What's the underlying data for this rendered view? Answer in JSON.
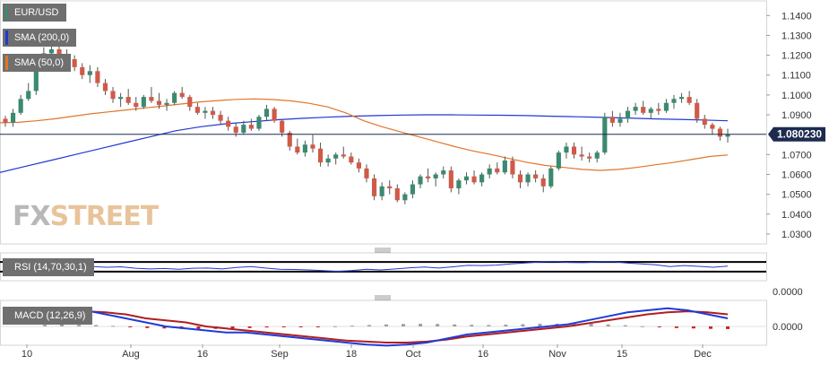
{
  "chart_data": [
    {
      "type": "candlestick",
      "title": "EUR/USD",
      "price_tag": "1.080230",
      "current_price": 1.0802,
      "ylim": [
        1.025,
        1.146
      ],
      "yticks": [
        "1.1400",
        "1.1300",
        "1.1200",
        "1.1100",
        "1.1000",
        "1.0900",
        "1.0700",
        "1.0600",
        "1.0500",
        "1.0400",
        "1.0300"
      ],
      "xticks": [
        "10",
        "Aug",
        "16",
        "Sep",
        "18",
        "Oct",
        "16",
        "Nov",
        "15",
        "Dec"
      ],
      "colors": {
        "up": "#3a8a6f",
        "down": "#d05a48",
        "sma200": "#2238d0",
        "sma50": "#e0752a",
        "price_line": "#1d2b4f"
      },
      "candles": [
        [
          1.088,
          1.0895,
          1.084,
          1.086
        ],
        [
          1.086,
          1.093,
          1.084,
          1.091
        ],
        [
          1.091,
          1.1,
          1.09,
          1.098
        ],
        [
          1.098,
          1.106,
          1.097,
          1.102
        ],
        [
          1.102,
          1.12,
          1.1,
          1.118
        ],
        [
          1.118,
          1.124,
          1.115,
          1.121
        ],
        [
          1.121,
          1.126,
          1.119,
          1.123
        ],
        [
          1.123,
          1.125,
          1.118,
          1.12
        ],
        [
          1.12,
          1.123,
          1.116,
          1.118
        ],
        [
          1.118,
          1.12,
          1.112,
          1.114
        ],
        [
          1.114,
          1.116,
          1.108,
          1.11
        ],
        [
          1.11,
          1.115,
          1.106,
          1.112
        ],
        [
          1.112,
          1.114,
          1.104,
          1.106
        ],
        [
          1.106,
          1.108,
          1.1,
          1.102
        ],
        [
          1.102,
          1.104,
          1.096,
          1.098
        ],
        [
          1.098,
          1.101,
          1.094,
          1.099
        ],
        [
          1.099,
          1.103,
          1.095,
          1.096
        ],
        [
          1.096,
          1.099,
          1.092,
          1.094
        ],
        [
          1.094,
          1.1,
          1.093,
          1.099
        ],
        [
          1.099,
          1.104,
          1.096,
          1.097
        ],
        [
          1.097,
          1.101,
          1.093,
          1.095
        ],
        [
          1.095,
          1.098,
          1.092,
          1.096
        ],
        [
          1.096,
          1.102,
          1.095,
          1.101
        ],
        [
          1.101,
          1.104,
          1.098,
          1.099
        ],
        [
          1.099,
          1.1,
          1.092,
          1.094
        ],
        [
          1.094,
          1.096,
          1.09,
          1.091
        ],
        [
          1.091,
          1.094,
          1.088,
          1.092
        ],
        [
          1.092,
          1.094,
          1.088,
          1.09
        ],
        [
          1.09,
          1.092,
          1.085,
          1.087
        ],
        [
          1.087,
          1.089,
          1.082,
          1.084
        ],
        [
          1.084,
          1.086,
          1.079,
          1.081
        ],
        [
          1.081,
          1.087,
          1.08,
          1.085
        ],
        [
          1.085,
          1.088,
          1.082,
          1.083
        ],
        [
          1.083,
          1.09,
          1.082,
          1.089
        ],
        [
          1.089,
          1.095,
          1.087,
          1.093
        ],
        [
          1.093,
          1.094,
          1.086,
          1.087
        ],
        [
          1.087,
          1.088,
          1.079,
          1.081
        ],
        [
          1.081,
          1.082,
          1.072,
          1.074
        ],
        [
          1.074,
          1.078,
          1.07,
          1.071
        ],
        [
          1.071,
          1.077,
          1.069,
          1.075
        ],
        [
          1.075,
          1.08,
          1.071,
          1.073
        ],
        [
          1.073,
          1.076,
          1.064,
          1.066
        ],
        [
          1.066,
          1.07,
          1.064,
          1.068
        ],
        [
          1.068,
          1.071,
          1.065,
          1.07
        ],
        [
          1.07,
          1.074,
          1.068,
          1.069
        ],
        [
          1.069,
          1.071,
          1.065,
          1.066
        ],
        [
          1.066,
          1.068,
          1.061,
          1.063
        ],
        [
          1.063,
          1.065,
          1.056,
          1.058
        ],
        [
          1.058,
          1.06,
          1.047,
          1.049
        ],
        [
          1.049,
          1.056,
          1.047,
          1.054
        ],
        [
          1.054,
          1.057,
          1.05,
          1.053
        ],
        [
          1.053,
          1.055,
          1.046,
          1.047
        ],
        [
          1.047,
          1.051,
          1.045,
          1.05
        ],
        [
          1.05,
          1.057,
          1.048,
          1.055
        ],
        [
          1.055,
          1.06,
          1.053,
          1.059
        ],
        [
          1.059,
          1.063,
          1.056,
          1.058
        ],
        [
          1.058,
          1.061,
          1.054,
          1.06
        ],
        [
          1.06,
          1.064,
          1.058,
          1.062
        ],
        [
          1.062,
          1.064,
          1.051,
          1.053
        ],
        [
          1.053,
          1.058,
          1.05,
          1.057
        ],
        [
          1.057,
          1.061,
          1.055,
          1.059
        ],
        [
          1.059,
          1.062,
          1.055,
          1.056
        ],
        [
          1.056,
          1.061,
          1.054,
          1.06
        ],
        [
          1.06,
          1.065,
          1.058,
          1.063
        ],
        [
          1.063,
          1.066,
          1.06,
          1.061
        ],
        [
          1.061,
          1.069,
          1.06,
          1.067
        ],
        [
          1.067,
          1.069,
          1.058,
          1.06
        ],
        [
          1.06,
          1.062,
          1.053,
          1.056
        ],
        [
          1.056,
          1.061,
          1.054,
          1.06
        ],
        [
          1.06,
          1.062,
          1.056,
          1.058
        ],
        [
          1.058,
          1.06,
          1.051,
          1.054
        ],
        [
          1.054,
          1.064,
          1.053,
          1.063
        ],
        [
          1.063,
          1.072,
          1.062,
          1.071
        ],
        [
          1.071,
          1.076,
          1.068,
          1.074
        ],
        [
          1.074,
          1.076,
          1.068,
          1.07
        ],
        [
          1.07,
          1.074,
          1.067,
          1.069
        ],
        [
          1.069,
          1.071,
          1.066,
          1.068
        ],
        [
          1.068,
          1.072,
          1.066,
          1.071
        ],
        [
          1.071,
          1.091,
          1.07,
          1.089
        ],
        [
          1.089,
          1.092,
          1.084,
          1.086
        ],
        [
          1.086,
          1.091,
          1.084,
          1.088
        ],
        [
          1.088,
          1.094,
          1.086,
          1.092
        ],
        [
          1.092,
          1.096,
          1.09,
          1.094
        ],
        [
          1.094,
          1.097,
          1.09,
          1.091
        ],
        [
          1.091,
          1.094,
          1.088,
          1.093
        ],
        [
          1.093,
          1.096,
          1.09,
          1.092
        ],
        [
          1.092,
          1.098,
          1.091,
          1.096
        ],
        [
          1.096,
          1.1,
          1.093,
          1.098
        ],
        [
          1.098,
          1.101,
          1.096,
          1.099
        ],
        [
          1.099,
          1.102,
          1.095,
          1.096
        ],
        [
          1.096,
          1.098,
          1.086,
          1.088
        ],
        [
          1.088,
          1.09,
          1.083,
          1.085
        ],
        [
          1.085,
          1.086,
          1.08,
          1.083
        ],
        [
          1.083,
          1.084,
          1.077,
          1.079
        ],
        [
          1.079,
          1.083,
          1.076,
          1.0802
        ]
      ],
      "sma200": [
        1.061,
        1.064,
        1.067,
        1.07,
        1.073,
        1.076,
        1.079,
        1.082,
        1.084,
        1.0855,
        1.0865,
        1.0875,
        1.0882,
        1.0888,
        1.0893,
        1.0896,
        1.0899,
        1.09,
        1.09,
        1.0899,
        1.0898,
        1.0896,
        1.0893,
        1.089,
        1.0887,
        1.0884,
        1.088,
        1.0877,
        1.0874,
        1.087
      ],
      "sma50": [
        1.086,
        1.0862,
        1.087,
        1.088,
        1.0893,
        1.0905,
        1.0915,
        1.0925,
        1.0935,
        1.0945,
        1.0955,
        1.0965,
        1.0972,
        1.0978,
        1.098,
        1.0977,
        1.097,
        1.0958,
        1.094,
        1.091,
        1.087,
        1.084,
        1.0815,
        1.079,
        1.0765,
        1.074,
        1.0718,
        1.07,
        1.068,
        1.066,
        1.0645,
        1.0635,
        1.0625,
        1.062,
        1.0625,
        1.0635,
        1.0648,
        1.066,
        1.0675,
        1.069,
        1.0698
      ]
    },
    {
      "type": "line",
      "title": "RSI (14,70,30,1)",
      "ylim": [
        0,
        100
      ],
      "levels": [
        70,
        30
      ],
      "values": [
        58,
        62,
        56,
        50,
        44,
        46,
        51,
        48,
        50,
        44,
        41,
        43,
        40,
        44,
        45,
        41,
        47,
        51,
        45,
        40,
        39,
        37,
        34,
        31,
        35,
        40,
        37,
        41,
        46,
        49,
        45,
        50,
        56,
        55,
        57,
        62,
        66,
        70,
        72,
        68,
        67,
        70,
        71,
        66,
        62,
        58,
        51,
        55,
        52,
        48,
        53
      ]
    },
    {
      "type": "histogram+line",
      "title": "MACD (12,26,9)",
      "yticks": [
        "0.0000",
        "0.0000"
      ],
      "macd": [
        0.004,
        0.006,
        0.008,
        0.009,
        0.008,
        0.006,
        0.004,
        0.002,
        0.0,
        -0.001,
        -0.002,
        -0.003,
        -0.003,
        -0.004,
        -0.005,
        -0.006,
        -0.007,
        -0.008,
        -0.009,
        -0.0095,
        -0.009,
        -0.008,
        -0.006,
        -0.004,
        -0.003,
        -0.002,
        -0.001,
        0.0,
        0.001,
        0.003,
        0.005,
        0.007,
        0.008,
        0.009,
        0.008,
        0.006,
        0.004
      ],
      "signal": [
        0.002,
        0.004,
        0.006,
        0.007,
        0.0075,
        0.007,
        0.006,
        0.004,
        0.003,
        0.002,
        0.0,
        -0.001,
        -0.002,
        -0.003,
        -0.004,
        -0.005,
        -0.006,
        -0.007,
        -0.0075,
        -0.008,
        -0.008,
        -0.0075,
        -0.0065,
        -0.005,
        -0.004,
        -0.003,
        -0.002,
        -0.001,
        0.0,
        0.0015,
        0.003,
        0.0045,
        0.006,
        0.007,
        0.0075,
        0.007,
        0.006
      ],
      "histogram": [
        0.0008,
        0.0009,
        0.0008,
        0.0007,
        0.0003,
        -0.0004,
        -0.0008,
        -0.001,
        -0.0012,
        -0.0013,
        -0.0012,
        -0.001,
        -0.0008,
        -0.0005,
        -0.0004,
        -0.0003,
        -0.0002,
        0.0001,
        0.0004,
        0.0007,
        0.001,
        0.0012,
        0.0013,
        0.0012,
        0.001,
        0.0008,
        0.0007,
        0.0009,
        0.0011,
        0.0013,
        0.0014,
        0.0015,
        0.0013,
        0.001,
        0.0006,
        0.0001,
        -0.0004,
        -0.0008,
        -0.001,
        -0.0012,
        -0.0013
      ]
    }
  ],
  "legend": [
    {
      "label": "EUR/USD",
      "color": "#3a8a6f"
    },
    {
      "label": "SMA (200,0)",
      "color": "#2238d0"
    },
    {
      "label": "SMA (50,0)",
      "color": "#e0752a"
    }
  ],
  "logo": {
    "fx": "FX",
    "street": "STREET"
  }
}
